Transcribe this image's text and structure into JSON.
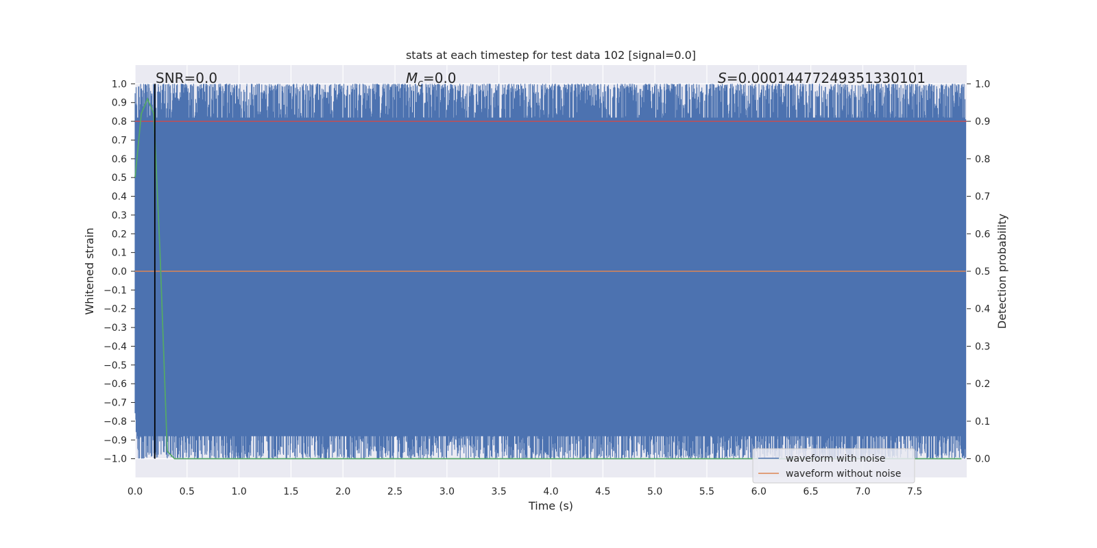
{
  "chart_data": {
    "type": "line",
    "title": "stats at each timestep for test data 102 [signal=0.0]",
    "xlabel": "Time (s)",
    "ylabel": "Whitened strain",
    "ylabel_right": "Detection probability",
    "xlim": [
      0.0,
      8.0
    ],
    "ylim": [
      -1.1,
      1.1
    ],
    "ylim_right": [
      -0.05,
      1.05
    ],
    "x_ticks": [
      "0.0",
      "0.5",
      "1.0",
      "1.5",
      "2.0",
      "2.5",
      "3.0",
      "3.5",
      "4.0",
      "4.5",
      "5.0",
      "5.5",
      "6.0",
      "6.5",
      "7.0",
      "7.5"
    ],
    "y_ticks": [
      "1.0",
      "0.9",
      "0.8",
      "0.7",
      "0.6",
      "0.5",
      "0.4",
      "0.3",
      "0.2",
      "0.1",
      "0.0",
      "−0.1",
      "−0.2",
      "−0.3",
      "−0.4",
      "−0.5",
      "−0.6",
      "−0.7",
      "−0.8",
      "−0.9",
      "−1.0"
    ],
    "y_ticks_right": [
      "1.0",
      "0.9",
      "0.8",
      "0.7",
      "0.6",
      "0.5",
      "0.4",
      "0.3",
      "0.2",
      "0.1",
      "0.0"
    ],
    "grid": true,
    "annotations": {
      "snr": "SNR=0.0",
      "mc_symbol": "M",
      "mc_sub": "c",
      "mc_value": "=0.0",
      "s_symbol": "S",
      "s_value": "=0.00014477249351330101"
    },
    "series": [
      {
        "name": "waveform with noise",
        "color": "#4c72b0",
        "description": "dense whitened noise spanning approximately -1.0 to 1.0 over 0-8 s",
        "range": [
          -1.0,
          1.0
        ]
      },
      {
        "name": "waveform without noise",
        "color": "#dd8452",
        "values_constant": 0.0
      },
      {
        "color": "#55a868",
        "axis": "right",
        "x": [
          0.0,
          0.06,
          0.12,
          0.18,
          0.24,
          0.31,
          0.38,
          0.5,
          1.0,
          2.0,
          3.0,
          4.0,
          5.0,
          6.0,
          7.0,
          7.95
        ],
        "y": [
          0.75,
          0.92,
          0.96,
          0.92,
          0.55,
          0.02,
          0.0,
          0.0,
          0.0,
          0.0,
          0.0,
          0.0,
          0.0,
          0.0,
          0.0,
          0.0
        ]
      }
    ],
    "threshold": {
      "color": "#c44e52",
      "value": 0.9,
      "axis": "right"
    },
    "vertical_marker": {
      "color": "#000000",
      "x": 0.19
    },
    "legend": {
      "placement": "lower-right",
      "entries": [
        "waveform with noise",
        "waveform without noise"
      ]
    }
  }
}
